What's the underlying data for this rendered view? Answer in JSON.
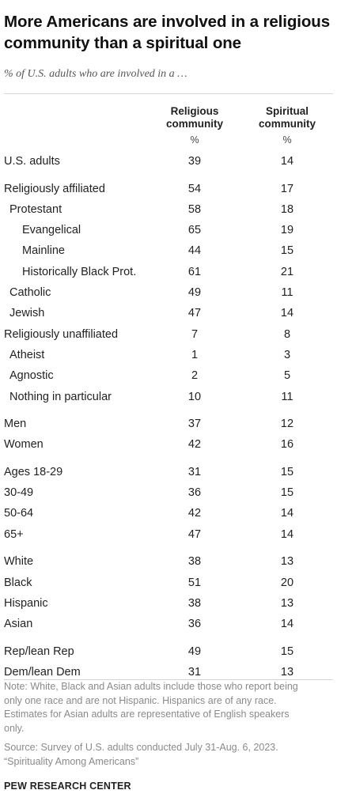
{
  "title": "More Americans are involved in a religious community than a spiritual one",
  "subtitle": "% of U.S. adults who are involved in a …",
  "chart_data": {
    "type": "table",
    "columns": [
      {
        "label": "Religious community",
        "unit": "%"
      },
      {
        "label": "Spiritual community",
        "unit": "%"
      }
    ],
    "groups": [
      {
        "rows": [
          {
            "label": "U.S. adults",
            "indent": 0,
            "religious": 39,
            "spiritual": 14
          }
        ]
      },
      {
        "rows": [
          {
            "label": "Religiously affiliated",
            "indent": 0,
            "religious": 54,
            "spiritual": 17
          },
          {
            "label": "Protestant",
            "indent": 1,
            "religious": 58,
            "spiritual": 18
          },
          {
            "label": "Evangelical",
            "indent": 2,
            "religious": 65,
            "spiritual": 19
          },
          {
            "label": "Mainline",
            "indent": 2,
            "religious": 44,
            "spiritual": 15
          },
          {
            "label": "Historically Black Prot.",
            "indent": 2,
            "religious": 61,
            "spiritual": 21
          },
          {
            "label": "Catholic",
            "indent": 1,
            "religious": 49,
            "spiritual": 11
          },
          {
            "label": "Jewish",
            "indent": 1,
            "religious": 47,
            "spiritual": 14
          },
          {
            "label": "Religiously unaffiliated",
            "indent": 0,
            "religious": 7,
            "spiritual": 8
          },
          {
            "label": "Atheist",
            "indent": 1,
            "religious": 1,
            "spiritual": 3
          },
          {
            "label": "Agnostic",
            "indent": 1,
            "religious": 2,
            "spiritual": 5
          },
          {
            "label": "Nothing in particular",
            "indent": 1,
            "religious": 10,
            "spiritual": 11
          }
        ]
      },
      {
        "rows": [
          {
            "label": "Men",
            "indent": 0,
            "religious": 37,
            "spiritual": 12
          },
          {
            "label": "Women",
            "indent": 0,
            "religious": 42,
            "spiritual": 16
          }
        ]
      },
      {
        "rows": [
          {
            "label": "Ages 18-29",
            "indent": 0,
            "religious": 31,
            "spiritual": 15
          },
          {
            "label": "30-49",
            "indent": 0,
            "religious": 36,
            "spiritual": 15
          },
          {
            "label": "50-64",
            "indent": 0,
            "religious": 42,
            "spiritual": 14
          },
          {
            "label": "65+",
            "indent": 0,
            "religious": 47,
            "spiritual": 14
          }
        ]
      },
      {
        "rows": [
          {
            "label": "White",
            "indent": 0,
            "religious": 38,
            "spiritual": 13
          },
          {
            "label": "Black",
            "indent": 0,
            "religious": 51,
            "spiritual": 20
          },
          {
            "label": "Hispanic",
            "indent": 0,
            "religious": 38,
            "spiritual": 13
          },
          {
            "label": "Asian",
            "indent": 0,
            "religious": 36,
            "spiritual": 14
          }
        ]
      },
      {
        "rows": [
          {
            "label": "Rep/lean Rep",
            "indent": 0,
            "religious": 49,
            "spiritual": 15
          },
          {
            "label": "Dem/lean Dem",
            "indent": 0,
            "religious": 31,
            "spiritual": 13
          }
        ]
      }
    ]
  },
  "note_lines": [
    "Note: White, Black and Asian adults include those who report being",
    "only one race and are not Hispanic. Hispanics are of any race.",
    "Estimates for Asian adults are representative of English speakers",
    "only."
  ],
  "source_lines": [
    "Source: Survey of U.S. adults conducted July 31-Aug. 6, 2023.",
    "“Spirituality Among Americans”"
  ],
  "brand": "PEW RESEARCH CENTER"
}
